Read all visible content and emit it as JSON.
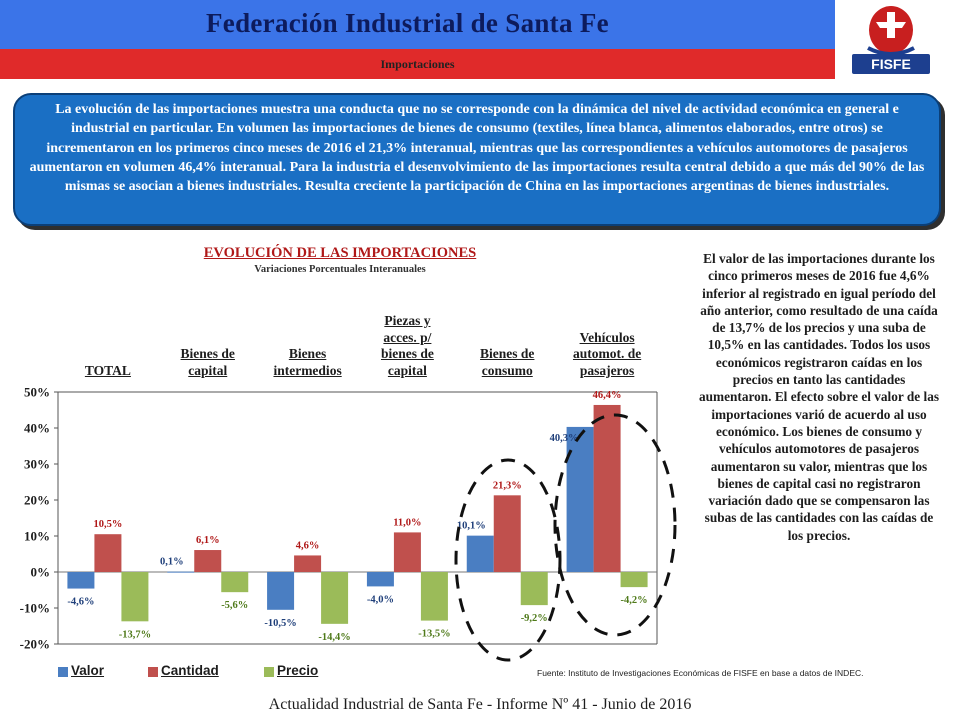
{
  "header": {
    "title": "Federación Industrial de Santa Fe",
    "subtitle": "Importaciones",
    "logo_text": "FISFE"
  },
  "summary": "La evolución de las importaciones muestra una conducta que no se corresponde con la dinámica del nivel de actividad económica en general e industrial en particular. En volumen las importaciones de bienes de consumo (textiles, línea blanca, alimentos elaborados, entre otros) se incrementaron en los primeros cinco meses de 2016 el 21,3% interanual, mientras que las correspondientes a vehículos automotores de pasajeros aumentaron en volumen 46,4% interanual.  Para la industria el desenvolvimiento de las importaciones resulta central debido a que más del 90% de las mismas se asocian a bienes industriales. Resulta creciente la participación de China en las importaciones argentinas de bienes industriales.",
  "side_text": "El valor de las importaciones durante los cinco primeros meses de 2016 fue 4,6% inferior al registrado en igual período del año anterior, como resultado de una caída de 13,7% de los precios y una suba de 10,5% en las cantidades. Todos los usos económicos registraron caídas en los precios en tanto las cantidades aumentaron. El efecto sobre el valor de las importaciones varió de acuerdo al uso económico. Los bienes de consumo y vehículos automotores de pasajeros aumentaron su valor, mientras que los bienes de capital casi no registraron variación dado que se compensaron las subas de las cantidades con las caídas de los precios.",
  "source": "Fuente: Instituto de Investigaciones Económicas de FISFE en base a datos de INDEC.",
  "footer": "Actualidad Industrial de Santa Fe - Informe Nº 41 - Junio de 2016",
  "colors": {
    "valor": "#4a7ec2",
    "cantidad": "#c0504d",
    "precio": "#9bbb59",
    "header_blue": "#3b74e8",
    "header_red": "#e02a2a",
    "box_blue": "#1a6fc4"
  },
  "chart_data": {
    "type": "bar",
    "title": "EVOLUCIÓN DE LAS IMPORTACIONES",
    "subtitle": "Variaciones Porcentuales Interanuales",
    "categories": [
      [
        "TOTAL"
      ],
      [
        "Bienes de",
        "capital"
      ],
      [
        "Bienes",
        "intermedios"
      ],
      [
        "Piezas y",
        "acces. p/",
        "bienes de",
        "capital"
      ],
      [
        "Bienes de",
        "consumo"
      ],
      [
        "Vehículos",
        "automot. de",
        "pasajeros"
      ]
    ],
    "series": [
      {
        "name": "Valor",
        "values": [
          -4.6,
          0.1,
          -10.5,
          -4.0,
          10.1,
          40.3
        ],
        "labels": [
          "-4,6%",
          "0,1%",
          "-10,5%",
          "-4,0%",
          "10,1%",
          "40,3%"
        ]
      },
      {
        "name": "Cantidad",
        "values": [
          10.5,
          6.1,
          4.6,
          11.0,
          21.3,
          46.4
        ],
        "labels": [
          "10,5%",
          "6,1%",
          "4,6%",
          "11,0%",
          "21,3%",
          "46,4%"
        ]
      },
      {
        "name": "Precio",
        "values": [
          -13.7,
          -5.6,
          -14.4,
          -13.5,
          -9.2,
          -4.2
        ],
        "labels": [
          "-13,7%",
          "-5,6%",
          "-14,4%",
          "-13,5%",
          "-9,2%",
          "-4,2%"
        ]
      }
    ],
    "yticks": [
      "50%",
      "40%",
      "30%",
      "20%",
      "10%",
      "0%",
      "-10%",
      "-20%"
    ],
    "ylim": [
      -20,
      50
    ],
    "legend": "bottom-left",
    "highlighted_groups": [
      "Bienes de consumo",
      "Vehículos automot. de pasajeros"
    ]
  }
}
